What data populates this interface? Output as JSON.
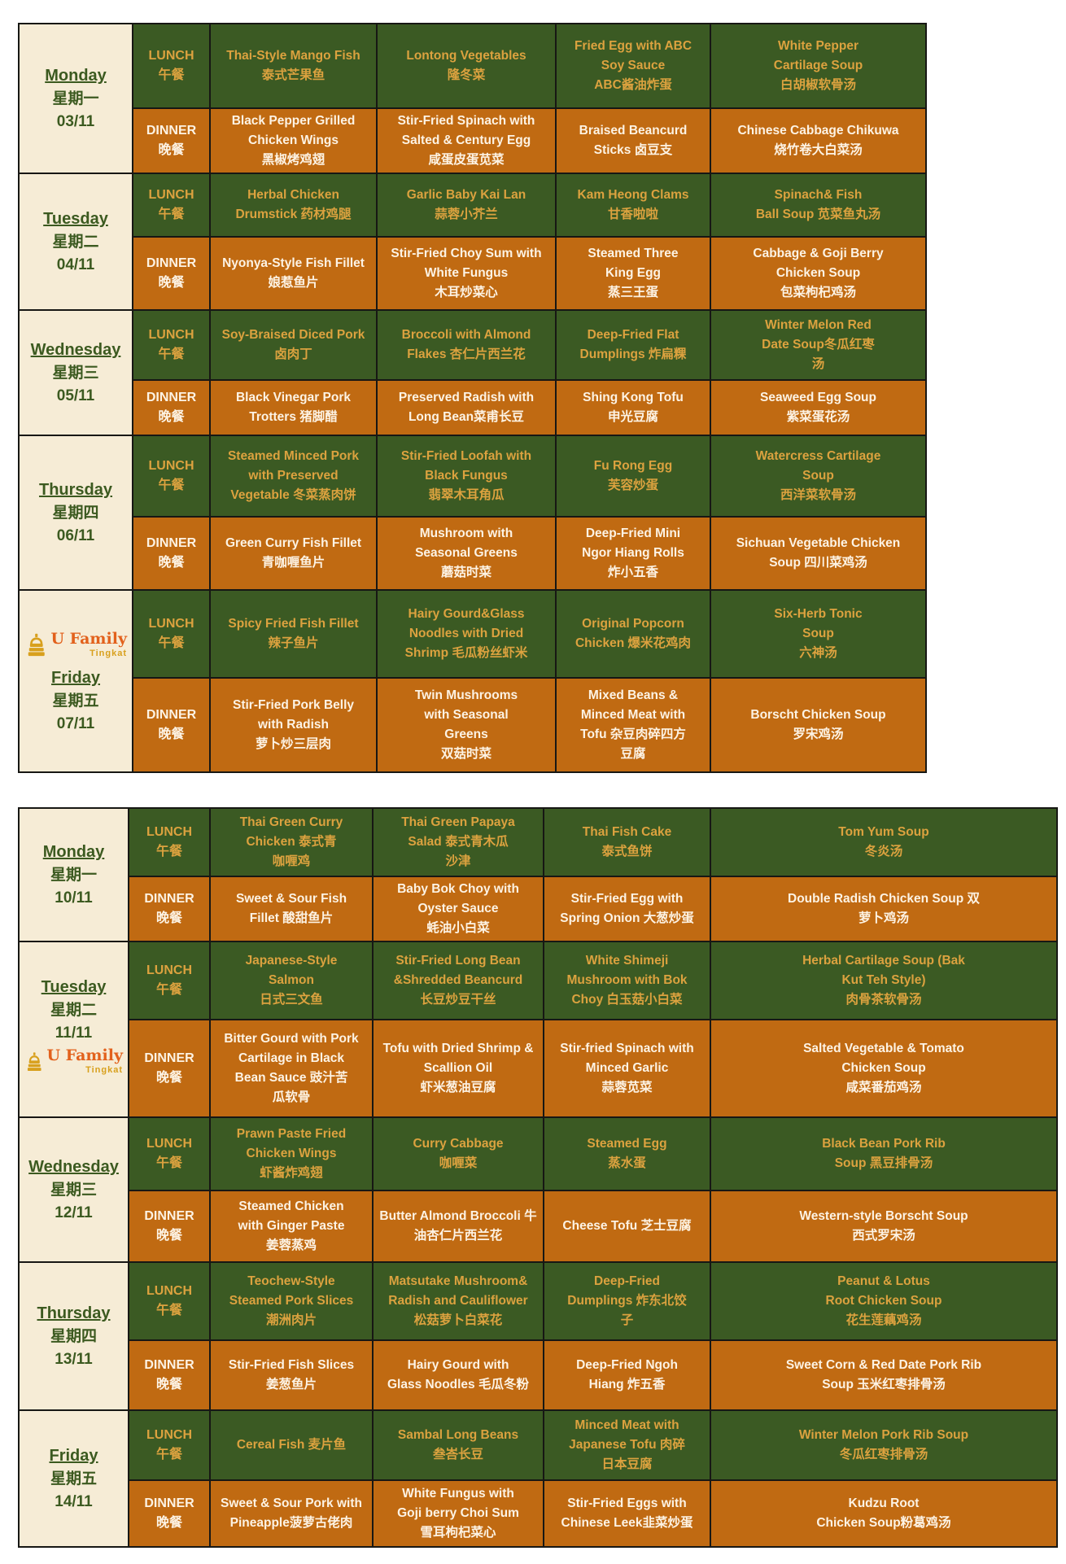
{
  "colors": {
    "lunch_bg": "#3b5a23",
    "dinner_bg": "#c06a12",
    "day_bg": "#f6ecd6",
    "lunch_text": "#dca23f",
    "dinner_text": "#fdf3e4",
    "day_text": "#3c5a20",
    "logo_orange": "#e2611c",
    "logo_gold": "#d8a01d"
  },
  "logo": {
    "brand": "U Family",
    "sub": "Tingkat"
  },
  "meals": {
    "lunch_en": "LUNCH",
    "lunch_zh": "午餐",
    "dinner_en": "DINNER",
    "dinner_zh": "晚餐"
  },
  "weeks": [
    {
      "days": [
        {
          "name": "Monday",
          "zh": "星期一",
          "date": "03/11",
          "logo": null,
          "lunch": [
            [
              "Thai-Style Mango Fish",
              "泰式芒果鱼"
            ],
            [
              "Lontong Vegetables",
              "隆冬菜"
            ],
            [
              "Fried Egg with ABC",
              "Soy  Sauce",
              "ABC酱油炸蛋"
            ],
            [
              "White Pepper",
              "Cartilage Soup",
              "白胡椒软骨汤"
            ]
          ],
          "dinner": [
            [
              "Black Pepper Grilled",
              "Chicken  Wings",
              "黑椒烤鸡翅"
            ],
            [
              "Stir-Fried Spinach with",
              "Salted & Century Egg",
              "咸蛋皮蛋苋菜"
            ],
            [
              "Braised Beancurd",
              "Sticks 卤豆支"
            ],
            [
              "Chinese Cabbage  Chikuwa",
              "烧竹卷大白菜汤"
            ]
          ]
        },
        {
          "name": "Tuesday",
          "zh": "星期二",
          "date": "04/11",
          "logo": null,
          "lunch": [
            [
              "Herbal Chicken",
              "Drumstick 药材鸡腿"
            ],
            [
              "Garlic Baby Kai Lan",
              "蒜蓉小芥兰"
            ],
            [
              "Kam Heong Clams",
              "甘香啦啦"
            ],
            [
              "Spinach& Fish",
              "Ball Soup 苋菜鱼丸汤"
            ]
          ],
          "dinner": [
            [
              "Nyonya-Style Fish Fillet",
              "娘惹鱼片"
            ],
            [
              "Stir-Fried Choy Sum with",
              "White Fungus",
              "木耳炒菜心"
            ],
            [
              "Steamed Three",
              "King Egg",
              "蒸三王蛋"
            ],
            [
              "Cabbage & Goji Berry",
              "Chicken Soup",
              "包菜枸杞鸡汤"
            ]
          ]
        },
        {
          "name": "Wednesday",
          "zh": "星期三",
          "date": "05/11",
          "logo": null,
          "lunch": [
            [
              "Soy-Braised Diced Pork",
              "卤肉丁"
            ],
            [
              "Broccoli with Almond",
              "Flakes 杏仁片西兰花"
            ],
            [
              "Deep-Fried Flat",
              "Dumplings 炸扁粿"
            ],
            [
              "Winter Melon Red",
              "Date Soup冬瓜红枣",
              "汤"
            ]
          ],
          "dinner": [
            [
              "Black Vinegar Pork",
              "Trotters 猪脚醋"
            ],
            [
              "Preserved Radish with",
              "Long Bean菜甫长豆"
            ],
            [
              "Shing Kong Tofu",
              "申光豆腐"
            ],
            [
              "Seaweed Egg Soup",
              "紫菜蛋花汤"
            ]
          ]
        },
        {
          "name": "Thursday",
          "zh": "星期四",
          "date": "06/11",
          "logo": null,
          "lunch": [
            [
              "Steamed Minced Pork",
              "with Preserved",
              "Vegetable 冬菜蒸肉饼"
            ],
            [
              "Stir-Fried Loofah with",
              "Black  Fungus",
              "翡翠木耳角瓜"
            ],
            [
              "Fu Rong Egg",
              "芙容炒蛋"
            ],
            [
              "Watercress Cartilage",
              "Soup",
              "西洋菜软骨汤"
            ]
          ],
          "dinner": [
            [
              "Green Curry Fish Fillet",
              "青咖喱鱼片"
            ],
            [
              "Mushroom with",
              "Seasonal  Greens",
              "蘑菇时菜"
            ],
            [
              "Deep-Fried Mini",
              "Ngor Hiang Rolls",
              "炸小五香"
            ],
            [
              "Sichuan Vegetable Chicken",
              "Soup 四川菜鸡汤"
            ]
          ]
        },
        {
          "name": "Friday",
          "zh": "星期五",
          "date": "07/11",
          "logo": "before",
          "lunch": [
            [
              "Spicy Fried Fish Fillet",
              "辣子鱼片"
            ],
            [
              "Hairy Gourd&Glass",
              "Noodles with Dried",
              "Shrimp 毛瓜粉丝虾米"
            ],
            [
              "Original Popcorn",
              "Chicken 爆米花鸡肉"
            ],
            [
              "Six-Herb Tonic",
              "Soup",
              "六神汤"
            ]
          ],
          "dinner": [
            [
              "Stir-Fried Pork Belly",
              "with Radish",
              "萝卜炒三层肉"
            ],
            [
              "Twin Mushrooms",
              "with  Seasonal",
              "Greens",
              "双菇时菜"
            ],
            [
              "Mixed Beans &",
              "Minced Meat with",
              "Tofu 杂豆肉碎四方",
              "豆腐"
            ],
            [
              "Borscht Chicken Soup",
              "罗宋鸡汤"
            ]
          ]
        }
      ]
    },
    {
      "days": [
        {
          "name": "Monday",
          "zh": "星期一",
          "date": "10/11",
          "logo": null,
          "lunch": [
            [
              "Thai Green Curry",
              "Chicken 泰式青",
              "咖喱鸡"
            ],
            [
              "Thai Green Papaya",
              "Salad 泰式青木瓜",
              "沙津"
            ],
            [
              "Thai Fish Cake",
              "泰式鱼饼"
            ],
            [
              "Tom Yum Soup",
              "冬炎汤"
            ]
          ],
          "dinner": [
            [
              "Sweet & Sour Fish",
              "Fillet 酸甜鱼片"
            ],
            [
              "Baby Bok Choy with",
              "Oyster  Sauce",
              "蚝油小白菜"
            ],
            [
              "Stir-Fried Egg with",
              "Spring Onion 大葱炒蛋"
            ],
            [
              "Double Radish Chicken Soup 双",
              "萝卜鸡汤"
            ]
          ]
        },
        {
          "name": "Tuesday",
          "zh": "星期二",
          "date": "11/11",
          "logo": "after",
          "lunch": [
            [
              "Japanese-Style",
              "Salmon",
              "日式三文鱼"
            ],
            [
              "Stir-Fried Long Bean",
              "&Shredded Beancurd",
              "长豆炒豆干丝"
            ],
            [
              "White Shimeji",
              "Mushroom  with Bok",
              "Choy 白玉菇小白菜"
            ],
            [
              "Herbal Cartilage Soup (Bak",
              "Kut  Teh Style)",
              "肉骨茶软骨汤"
            ]
          ],
          "dinner": [
            [
              "Bitter Gourd with Pork",
              "Cartilage in Black",
              "Bean Sauce 豉汁苦",
              "瓜软骨"
            ],
            [
              "Tofu with Dried Shrimp &",
              "Scallion Oil",
              "虾米葱油豆腐"
            ],
            [
              "Stir-fried Spinach with",
              "Minced Garlic",
              "蒜蓉苋菜"
            ],
            [
              "Salted Vegetable & Tomato",
              "Chicken Soup",
              "咸菜番茄鸡汤"
            ]
          ]
        },
        {
          "name": "Wednesday",
          "zh": "星期三",
          "date": "12/11",
          "logo": null,
          "lunch": [
            [
              "Prawn Paste Fried",
              "Chicken Wings",
              "虾酱炸鸡翅"
            ],
            [
              "Curry Cabbage",
              "咖喱菜"
            ],
            [
              "Steamed Egg",
              "蒸水蛋"
            ],
            [
              "Black Bean  Pork Rib",
              "Soup 黑豆排骨汤"
            ]
          ],
          "dinner": [
            [
              "Steamed Chicken",
              "with Ginger  Paste",
              "姜蓉蒸鸡"
            ],
            [
              "Butter Almond Broccoli 牛",
              "油杏仁片西兰花"
            ],
            [
              "Cheese Tofu 芝士豆腐"
            ],
            [
              "Western-style Borscht Soup",
              "西式罗宋汤"
            ]
          ]
        },
        {
          "name": "Thursday",
          "zh": "星期四",
          "date": "13/11",
          "logo": null,
          "lunch": [
            [
              "Teochew-Style",
              "Steamed Pork Slices",
              "潮洲肉片"
            ],
            [
              "Matsutake Mushroom&",
              "Radish and Cauliflower",
              "松菇萝卜白菜花"
            ],
            [
              "Deep-Fried",
              "Dumplings 炸东北饺",
              "子"
            ],
            [
              "Peanut & Lotus",
              "Root Chicken Soup",
              "花生莲藕鸡汤"
            ]
          ],
          "dinner": [
            [
              "Stir-Fried Fish Slices",
              "姜葱鱼片"
            ],
            [
              "Hairy Gourd with",
              "Glass Noodles 毛瓜冬粉"
            ],
            [
              "Deep-Fried Ngoh",
              "Hiang  炸五香"
            ],
            [
              "Sweet Corn & Red Date Pork Rib",
              "Soup 玉米红枣排骨汤"
            ]
          ]
        },
        {
          "name": "Friday",
          "zh": "星期五",
          "date": "14/11",
          "logo": null,
          "lunch": [
            [
              "Cereal Fish 麦片鱼"
            ],
            [
              "Sambal Long Beans",
              "叁峇长豆"
            ],
            [
              "Minced Meat with",
              "Japanese Tofu 肉碎",
              "日本豆腐"
            ],
            [
              "Winter Melon Pork Rib Soup",
              "冬瓜红枣排骨汤"
            ]
          ],
          "dinner": [
            [
              "Sweet & Sour Pork with",
              "Pineapple菠萝古佬肉"
            ],
            [
              "White Fungus with",
              "Goji berry Choi Sum",
              "雪耳枸杞菜心"
            ],
            [
              "Stir-Fried Eggs with",
              "Chinese Leek韭菜炒蛋"
            ],
            [
              "Kudzu Root",
              "Chicken Soup粉葛鸡汤"
            ]
          ]
        }
      ]
    }
  ]
}
